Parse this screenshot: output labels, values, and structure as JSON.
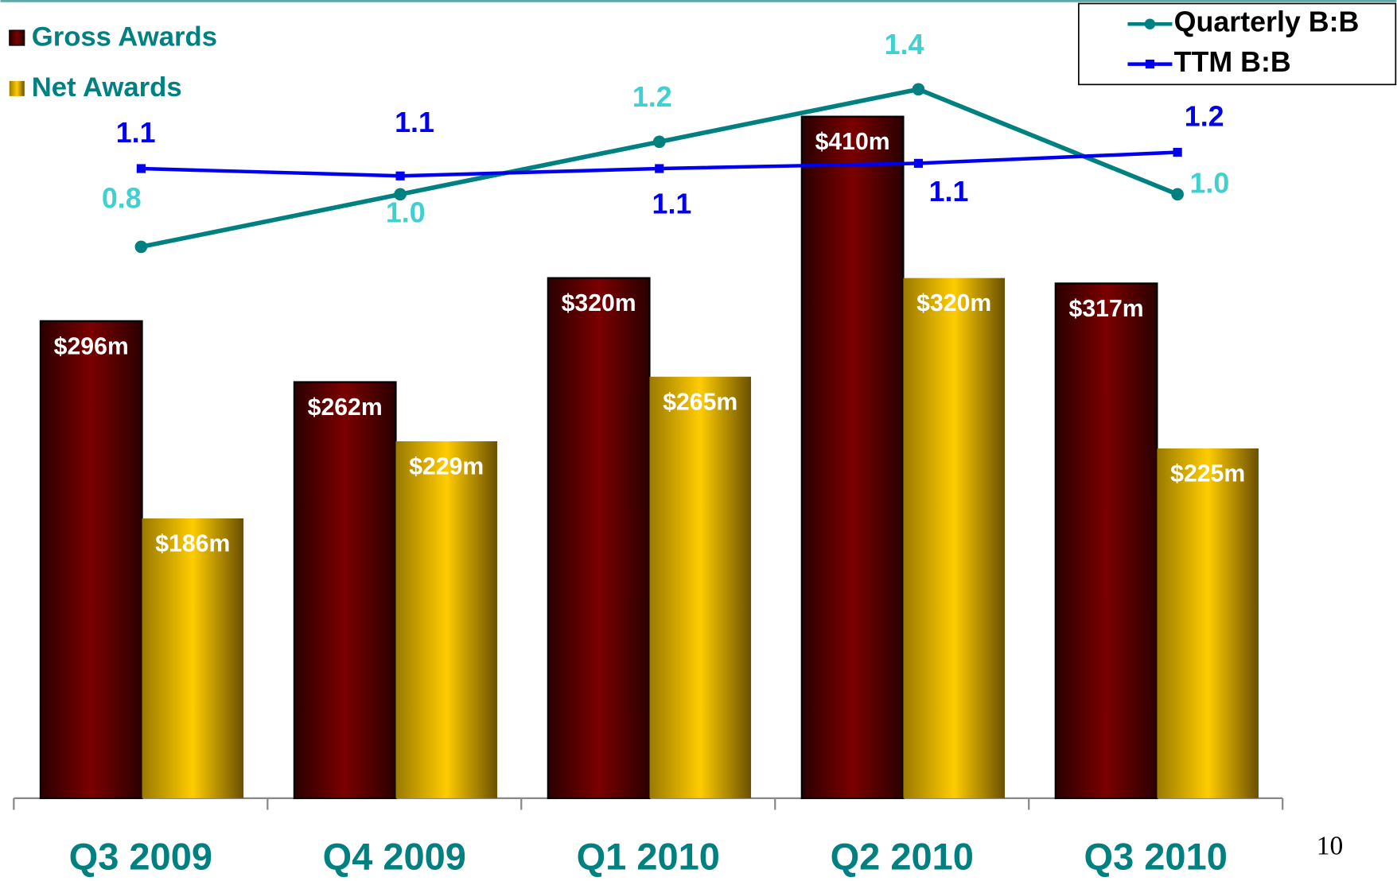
{
  "chart_data": {
    "type": "bar",
    "categories": [
      "Q3 2009",
      "Q4 2009",
      "Q1 2010",
      "Q2 2010",
      "Q3 2010"
    ],
    "ylim": [
      30,
      475
    ],
    "y2lim": [
      -1.3,
      1.74
    ],
    "series": [
      {
        "name": "Gross Awards",
        "color": "#7a0000",
        "values": [
          296,
          262,
          320,
          410,
          317
        ],
        "value_labels": [
          "$296m",
          "$262m",
          "$320m",
          "$410m",
          "$317m"
        ]
      },
      {
        "name": "Net Awards",
        "color": "#ffcc00",
        "values": [
          186,
          229,
          265,
          320,
          225
        ],
        "value_labels": [
          "$186m",
          "$229m",
          "$265m",
          "$320m",
          "$225m"
        ]
      },
      {
        "name": "Quarterly B:B",
        "color": "#008080",
        "type": "line",
        "axis": "y2",
        "label_color": "#40d0d0",
        "values": [
          0.8,
          1.0,
          1.2,
          1.4,
          1.0
        ],
        "value_labels": [
          "0.8",
          "1.0",
          "1.2",
          "1.4",
          "1.0"
        ]
      },
      {
        "name": "TTM B:B",
        "color": "#0000ee",
        "type": "line",
        "axis": "y2",
        "values": [
          1.098,
          1.07,
          1.098,
          1.118,
          1.16
        ],
        "value_labels": [
          "1.1",
          "1.1",
          "1.1",
          "1.1",
          "1.2"
        ]
      }
    ]
  },
  "page_number": "10"
}
